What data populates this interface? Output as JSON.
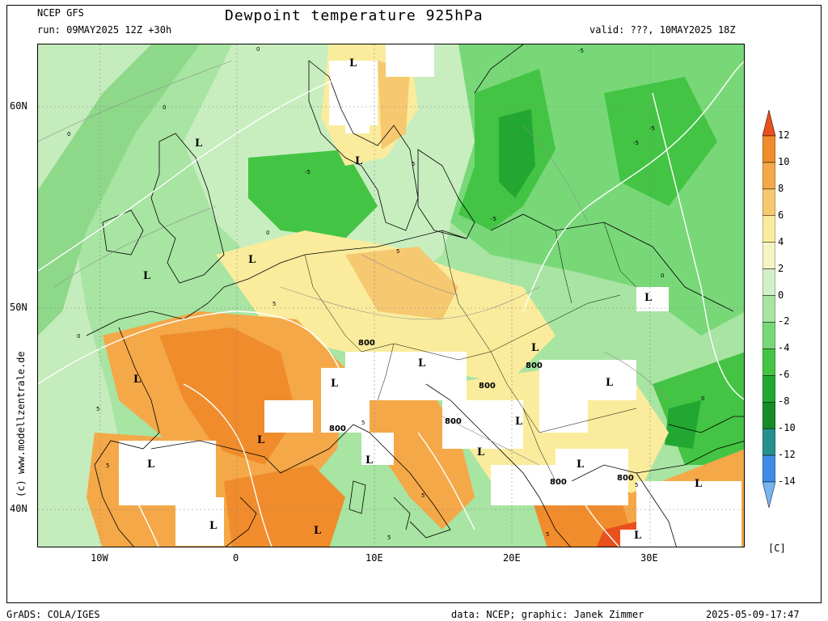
{
  "header": {
    "model": "NCEP GFS",
    "run": "run: 09MAY2025 12Z +30h",
    "title": "Dewpoint temperature 925hPa",
    "valid": "valid: ???, 10MAY2025 18Z"
  },
  "axes": {
    "lat_labels": [
      "60N",
      "50N",
      "40N"
    ],
    "lon_labels": [
      "10W",
      "0",
      "10E",
      "20E",
      "30E"
    ]
  },
  "colorbar": {
    "ticks": [
      "12",
      "10",
      "8",
      "6",
      "4",
      "2",
      "0",
      "-2",
      "-4",
      "-6",
      "-8",
      "-10",
      "-12",
      "-14"
    ],
    "unit": "[C]",
    "colors": [
      "#e8501c",
      "#f08c2c",
      "#f4a848",
      "#f6c870",
      "#faec9c",
      "#f4f4c4",
      "#d2f0c8",
      "#a8e4a2",
      "#78d878",
      "#44c444",
      "#22a832",
      "#168c28",
      "#28908c",
      "#3c8ce8",
      "#78b4f0"
    ]
  },
  "map_labels": {
    "lows": [
      "L",
      "L",
      "L",
      "L",
      "L",
      "L",
      "L",
      "L",
      "L",
      "L",
      "L",
      "L",
      "L",
      "L",
      "L",
      "L",
      "L",
      "L",
      "L",
      "L",
      "L"
    ],
    "heights": [
      "800",
      "800",
      "800",
      "800",
      "800",
      "800",
      "800"
    ],
    "contours": [
      "-5",
      "-5",
      "-5",
      "-5",
      "-5",
      "0",
      "0",
      "0",
      "0",
      "0",
      "0",
      "0",
      "5",
      "5",
      "5",
      "5",
      "5",
      "5",
      "5",
      "5",
      "5",
      "5"
    ]
  },
  "credit_side": "(c) www.modellzentrale.de",
  "footer": {
    "left": "GrADS: COLA/IGES",
    "middle": "data: NCEP; graphic: Janek Zimmer",
    "right": "2025-05-09-17:47"
  }
}
